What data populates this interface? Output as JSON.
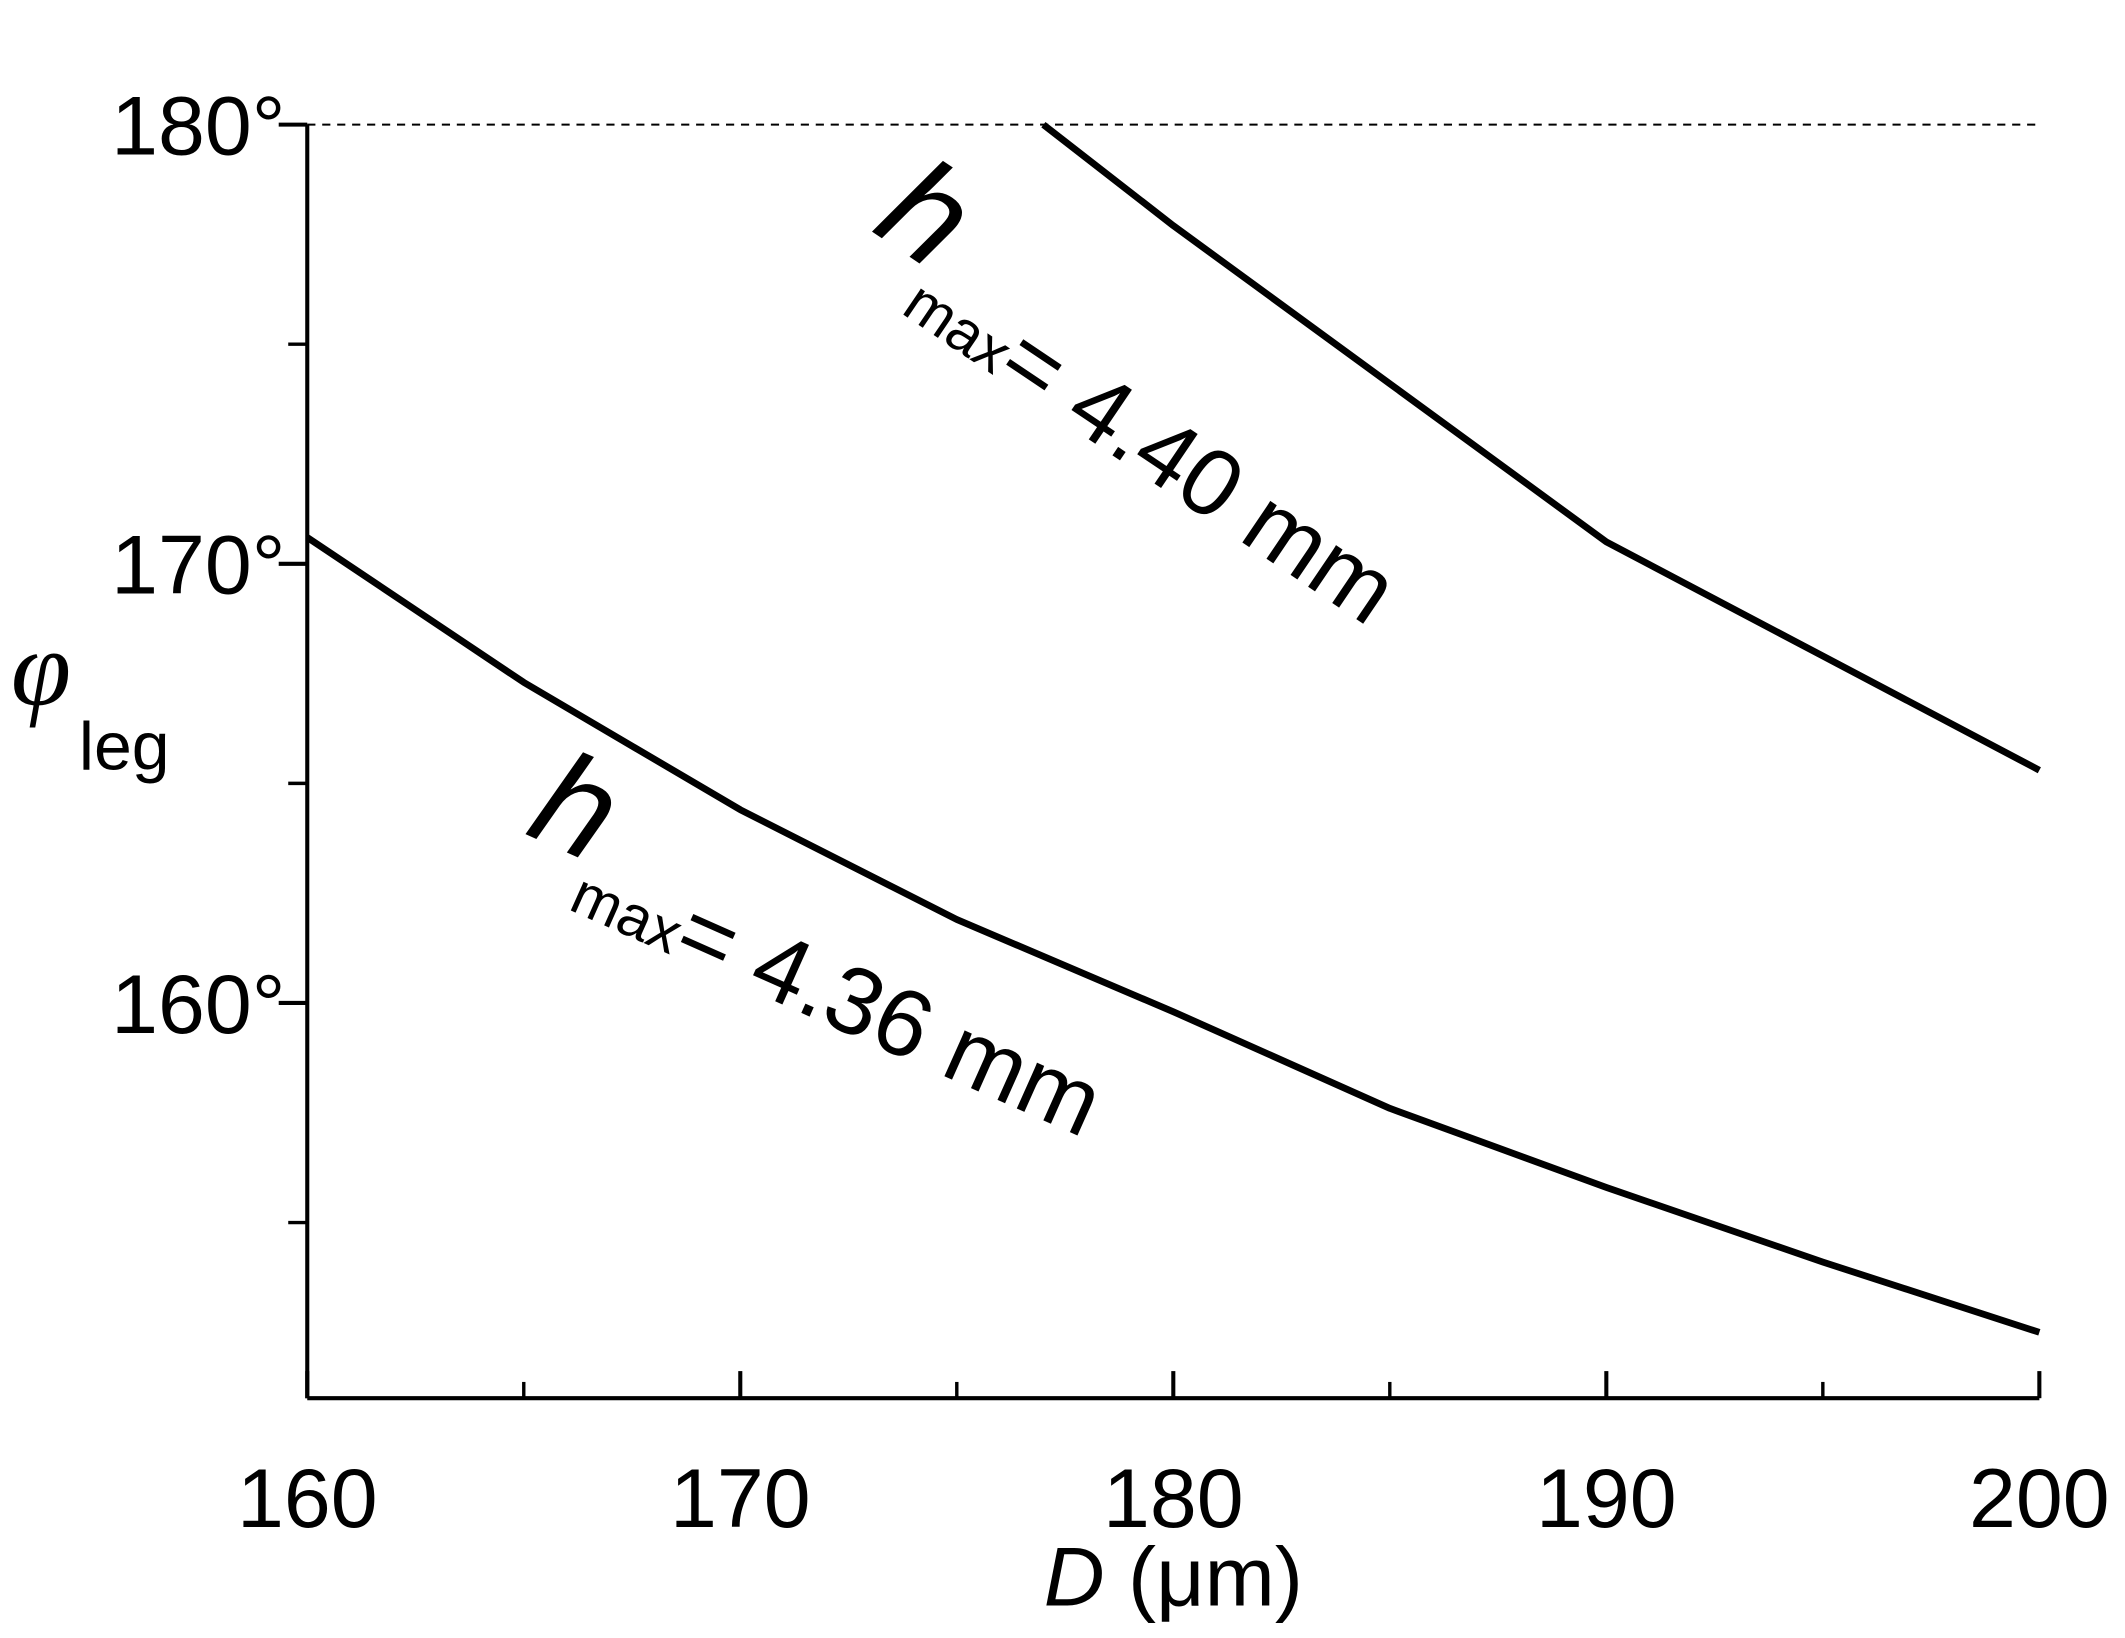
{
  "chart_data": {
    "type": "line",
    "xlabel": {
      "symbol": "D",
      "unit": "(μm)"
    },
    "ylabel": {
      "symbol": "φ",
      "subscript": "leg"
    },
    "xlim": [
      160,
      200
    ],
    "xticks": [
      160,
      170,
      180,
      190,
      200
    ],
    "x_minor_ticks": [
      165,
      175,
      185,
      195
    ],
    "ylim": [
      151,
      180
    ],
    "yticks": [
      {
        "value": 160,
        "label": "160°"
      },
      {
        "value": 170,
        "label": "170°"
      },
      {
        "value": 180,
        "label": "180°"
      }
    ],
    "y_minor_ticks": [
      155,
      165,
      175
    ],
    "reference_line": 180,
    "series": [
      {
        "color": "#000000",
        "x": [
          177,
          180,
          185,
          190,
          195,
          200
        ],
        "values": [
          180,
          177.7,
          174.1,
          170.5,
          167.9,
          165.3
        ],
        "annotation": {
          "symbol": "h",
          "subscript": "max",
          "text": "= 4.40 mm"
        }
      },
      {
        "color": "#000000",
        "x": [
          160,
          165,
          170,
          175,
          180,
          185,
          190,
          195,
          200
        ],
        "values": [
          170.6,
          167.3,
          164.4,
          161.9,
          159.8,
          157.6,
          155.8,
          154.1,
          152.5
        ],
        "annotation": {
          "symbol": "h",
          "subscript": "max",
          "text": "= 4.36 mm"
        }
      }
    ]
  }
}
